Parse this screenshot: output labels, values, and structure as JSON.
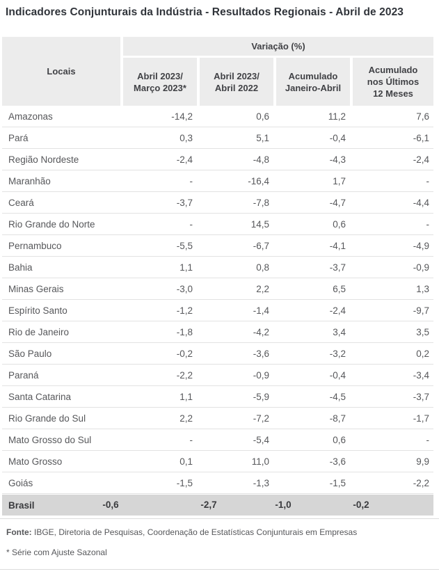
{
  "title": "Indicadores Conjunturais da Indústria - Resultados Regionais - Abril de 2023",
  "table": {
    "locais_header": "Locais",
    "group_header": "Variação (%)",
    "columns": [
      "Abril 2023/\nMarço 2023*",
      "Abril 2023/\nAbril 2022",
      "Acumulado\nJaneiro-Abril",
      "Acumulado\nnos Últimos\n12 Meses"
    ],
    "rows": [
      {
        "local": "Amazonas",
        "values": [
          "-14,2",
          "0,6",
          "11,2",
          "7,6"
        ]
      },
      {
        "local": "Pará",
        "values": [
          "0,3",
          "5,1",
          "-0,4",
          "-6,1"
        ]
      },
      {
        "local": "Região Nordeste",
        "values": [
          "-2,4",
          "-4,8",
          "-4,3",
          "-2,4"
        ]
      },
      {
        "local": "Maranhão",
        "values": [
          "-",
          "-16,4",
          "1,7",
          "-"
        ]
      },
      {
        "local": "Ceará",
        "values": [
          "-3,7",
          "-7,8",
          "-4,7",
          "-4,4"
        ]
      },
      {
        "local": "Rio Grande do Norte",
        "values": [
          "-",
          "14,5",
          "0,6",
          "-"
        ]
      },
      {
        "local": "Pernambuco",
        "values": [
          "-5,5",
          "-6,7",
          "-4,1",
          "-4,9"
        ]
      },
      {
        "local": "Bahia",
        "values": [
          "1,1",
          "0,8",
          "-3,7",
          "-0,9"
        ]
      },
      {
        "local": "Minas Gerais",
        "values": [
          "-3,0",
          "2,2",
          "6,5",
          "1,3"
        ]
      },
      {
        "local": "Espírito Santo",
        "values": [
          "-1,2",
          "-1,4",
          "-2,4",
          "-9,7"
        ]
      },
      {
        "local": "Rio de Janeiro",
        "values": [
          "-1,8",
          "-4,2",
          "3,4",
          "3,5"
        ]
      },
      {
        "local": "São Paulo",
        "values": [
          "-0,2",
          "-3,6",
          "-3,2",
          "0,2"
        ]
      },
      {
        "local": "Paraná",
        "values": [
          "-2,2",
          "-0,9",
          "-0,4",
          "-3,4"
        ]
      },
      {
        "local": "Santa Catarina",
        "values": [
          "1,1",
          "-5,9",
          "-4,5",
          "-3,7"
        ]
      },
      {
        "local": "Rio Grande do Sul",
        "values": [
          "2,2",
          "-7,2",
          "-8,7",
          "-1,7"
        ]
      },
      {
        "local": "Mato Grosso do Sul",
        "values": [
          "-",
          "-5,4",
          "0,6",
          "-"
        ]
      },
      {
        "local": "Mato Grosso",
        "values": [
          "0,1",
          "11,0",
          "-3,6",
          "9,9"
        ]
      },
      {
        "local": "Goiás",
        "values": [
          "-1,5",
          "-1,3",
          "-1,5",
          "-2,2"
        ]
      }
    ],
    "total_row": {
      "local": "Brasil",
      "values": [
        "-0,6",
        "-2,7",
        "-1,0",
        "-0,2"
      ]
    }
  },
  "footer": {
    "source_label": "Fonte:",
    "source_text": " IBGE, Diretoria de Pesquisas, Coordenação de Estatísticas Conjunturais em Empresas",
    "note": "* Série com Ajuste Sazonal"
  },
  "colors": {
    "header_bg": "#ececec",
    "total_bg": "#d6d6d6",
    "row_border": "#e2e2e2",
    "body_text": "#56575a",
    "header_text": "#404145",
    "title_text": "#30343a"
  },
  "chart_data": {
    "type": "table",
    "title": "Indicadores Conjunturais da Indústria - Resultados Regionais - Abril de 2023",
    "value_unit": "Variação (%)",
    "columns": [
      "Locais",
      "Abril 2023/Março 2023*",
      "Abril 2023/Abril 2022",
      "Acumulado Janeiro-Abril",
      "Acumulado nos Últimos 12 Meses"
    ],
    "rows": [
      [
        "Amazonas",
        -14.2,
        0.6,
        11.2,
        7.6
      ],
      [
        "Pará",
        0.3,
        5.1,
        -0.4,
        -6.1
      ],
      [
        "Região Nordeste",
        -2.4,
        -4.8,
        -4.3,
        -2.4
      ],
      [
        "Maranhão",
        null,
        -16.4,
        1.7,
        null
      ],
      [
        "Ceará",
        -3.7,
        -7.8,
        -4.7,
        -4.4
      ],
      [
        "Rio Grande do Norte",
        null,
        14.5,
        0.6,
        null
      ],
      [
        "Pernambuco",
        -5.5,
        -6.7,
        -4.1,
        -4.9
      ],
      [
        "Bahia",
        1.1,
        0.8,
        -3.7,
        -0.9
      ],
      [
        "Minas Gerais",
        -3.0,
        2.2,
        6.5,
        1.3
      ],
      [
        "Espírito Santo",
        -1.2,
        -1.4,
        -2.4,
        -9.7
      ],
      [
        "Rio de Janeiro",
        -1.8,
        -4.2,
        3.4,
        3.5
      ],
      [
        "São Paulo",
        -0.2,
        -3.6,
        -3.2,
        0.2
      ],
      [
        "Paraná",
        -2.2,
        -0.9,
        -0.4,
        -3.4
      ],
      [
        "Santa Catarina",
        1.1,
        -5.9,
        -4.5,
        -3.7
      ],
      [
        "Rio Grande do Sul",
        2.2,
        -7.2,
        -8.7,
        -1.7
      ],
      [
        "Mato Grosso do Sul",
        null,
        -5.4,
        0.6,
        null
      ],
      [
        "Mato Grosso",
        0.1,
        11.0,
        -3.6,
        9.9
      ],
      [
        "Goiás",
        -1.5,
        -1.3,
        -1.5,
        -2.2
      ],
      [
        "Brasil",
        -0.6,
        -2.7,
        -1.0,
        -0.2
      ]
    ],
    "footnotes": [
      "Fonte: IBGE, Diretoria de Pesquisas, Coordenação de Estatísticas Conjunturais em Empresas",
      "* Série com Ajuste Sazonal"
    ]
  }
}
